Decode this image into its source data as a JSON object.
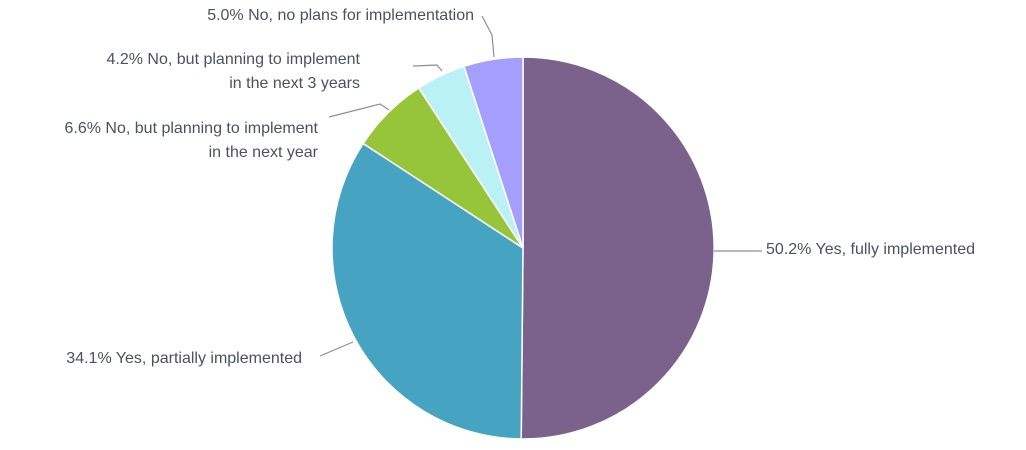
{
  "chart_data": {
    "type": "pie",
    "title": "",
    "start_angle_deg": 0,
    "direction": "clockwise",
    "slices": [
      {
        "label": "Yes, fully implemented",
        "value": 50.2,
        "display": "50.2%",
        "label_lines": [
          "50.2% Yes, fully implemented"
        ],
        "color": "#7b628c"
      },
      {
        "label": "Yes, partially implemented",
        "value": 34.1,
        "display": "34.1%",
        "label_lines": [
          "34.1% Yes, partially implemented"
        ],
        "color": "#46a3c1"
      },
      {
        "label": "No, but planning to implement in the next year",
        "value": 6.6,
        "display": "6.6%",
        "label_lines": [
          "6.6% No, but planning to implement",
          "in the next year"
        ],
        "color": "#97c53a"
      },
      {
        "label": "No, but planning to implement in the next 3 years",
        "value": 4.2,
        "display": "4.2%",
        "label_lines": [
          "4.2% No, but planning to implement",
          "in the next 3 years"
        ],
        "color": "#b9f1f5"
      },
      {
        "label": "No, no plans for implementation",
        "value": 5.0,
        "display": "5.0%",
        "label_lines": [
          "5.0% No, no plans for implementation"
        ],
        "color": "#a49efc"
      }
    ]
  }
}
